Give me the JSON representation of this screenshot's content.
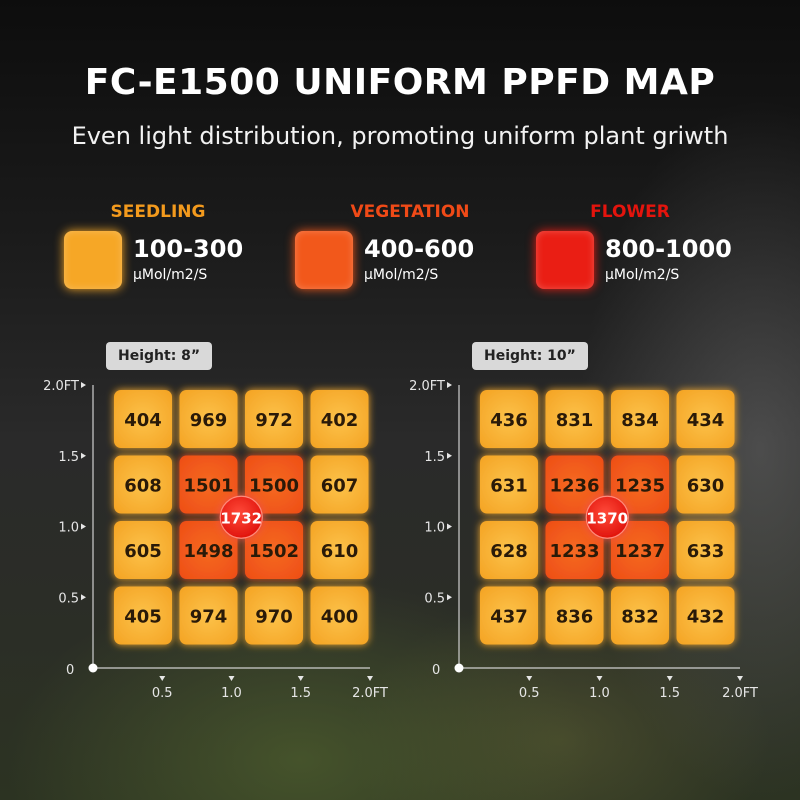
{
  "title": "FC-E1500 UNIFORM PPFD MAP",
  "subtitle": "Even light distribution, promoting uniform plant griwth",
  "colors": {
    "seedling": "#f6a726",
    "vegetation": "#f2581b",
    "flower": "#ea1e14"
  },
  "legend": [
    {
      "name": "SEEDLING",
      "range": "100-300",
      "unit": "μMol/m2/S",
      "color": "#f6a726",
      "label_color": "#f39a1d"
    },
    {
      "name": "VEGETATION",
      "range": "400-600",
      "unit": "μMol/m2/S",
      "color": "#f2581b",
      "label_color": "#f04a17"
    },
    {
      "name": "FLOWER",
      "range": "800-1000",
      "unit": "μMol/m2/S",
      "color": "#ea1e14",
      "label_color": "#e4140d"
    }
  ],
  "chart_data": [
    {
      "type": "heatmap",
      "title": "Height: 8”",
      "x_ticks": [
        "0.5",
        "1.0",
        "1.5",
        "2.0FT"
      ],
      "y_ticks": [
        "2.0FT",
        "1.5",
        "1.0",
        "0.5"
      ],
      "origin_label": "0",
      "xlim": [
        0,
        2
      ],
      "ylim": [
        0,
        2
      ],
      "rows": [
        [
          404,
          969,
          972,
          402
        ],
        [
          608,
          1501,
          1500,
          607
        ],
        [
          605,
          1498,
          1502,
          610
        ],
        [
          405,
          974,
          970,
          400
        ]
      ],
      "center_value": 1732
    },
    {
      "type": "heatmap",
      "title": "Height: 10”",
      "x_ticks": [
        "0.5",
        "1.0",
        "1.5",
        "2.0FT"
      ],
      "y_ticks": [
        "2.0FT",
        "1.5",
        "1.0",
        "0.5"
      ],
      "origin_label": "0",
      "xlim": [
        0,
        2
      ],
      "ylim": [
        0,
        2
      ],
      "rows": [
        [
          436,
          831,
          834,
          434
        ],
        [
          631,
          1236,
          1235,
          630
        ],
        [
          628,
          1233,
          1237,
          633
        ],
        [
          437,
          836,
          832,
          432
        ]
      ],
      "center_value": 1370
    }
  ]
}
